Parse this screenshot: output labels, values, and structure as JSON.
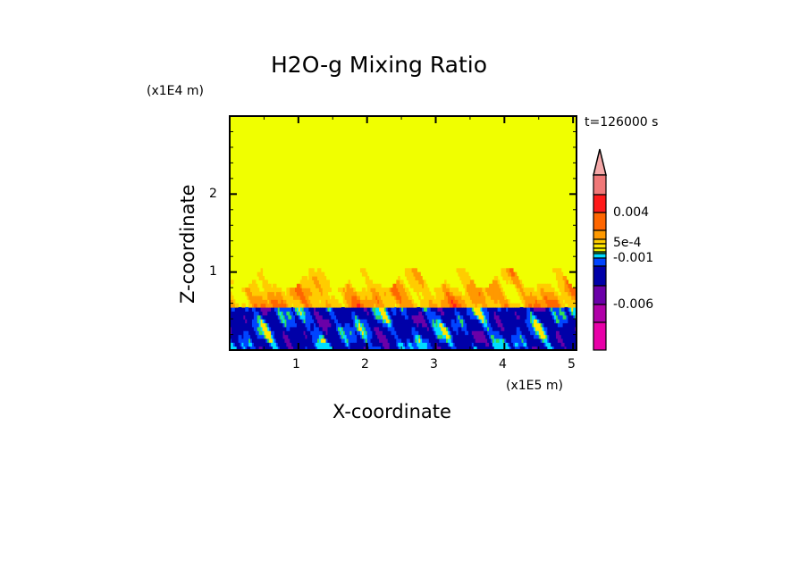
{
  "chart_data": {
    "type": "heatmap",
    "title": "H2O-g Mixing Ratio",
    "xlabel": "X-coordinate",
    "ylabel": "Z-coordinate",
    "x_unit": "(x1E5 m)",
    "y_unit": "(x1E4 m)",
    "time_label": "t=126000 s",
    "xlim": [
      0,
      5.05
    ],
    "ylim": [
      0,
      3.0
    ],
    "x_ticks": [
      "1",
      "2",
      "3",
      "4",
      "5"
    ],
    "y_ticks": [
      "1",
      "2"
    ],
    "colorbar": {
      "labels": [
        "0.004",
        "5e-4",
        "-0.001",
        "-0.006"
      ],
      "colors": [
        "#f4a8a8",
        "#f07878",
        "#ff1a1a",
        "#ff6600",
        "#ff9900",
        "#ffcc00",
        "#ffe800",
        "#f0f000",
        "#33dd55",
        "#00ddff",
        "#0044ff",
        "#0000a8",
        "#6a00a8",
        "#b000a8",
        "#e800a8"
      ]
    },
    "field": {
      "background_level_color": "#f0ff00",
      "moist_layer_top": 1.05,
      "interface_height": 0.5
    }
  }
}
